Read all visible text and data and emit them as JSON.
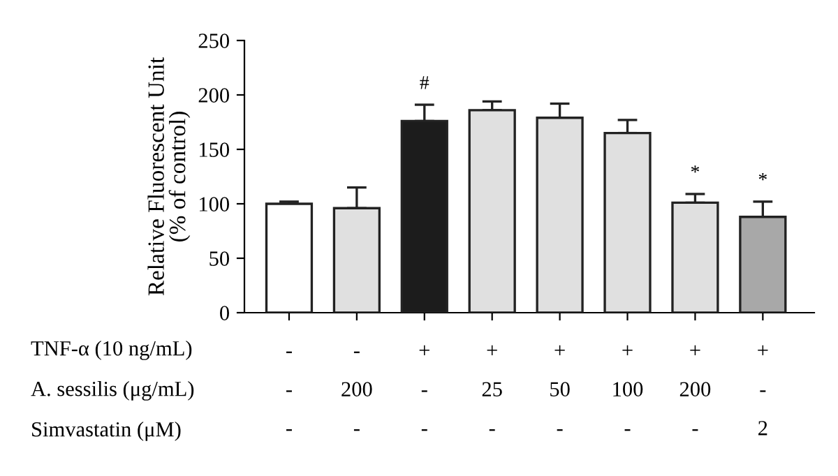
{
  "chart_data": {
    "type": "bar",
    "ylabel": "Relative Fluorescent Unit\n(% of control)",
    "categories": [
      "-\n-\n-",
      "-\n200\n-",
      "+\n-\n-",
      "+\n25\n-",
      "+\n50\n-",
      "+\n100\n-",
      "+\n200\n-",
      "+\n-\n2"
    ],
    "values": [
      100,
      96,
      176,
      186,
      179,
      165,
      101,
      88
    ],
    "errors": [
      [
        100,
        102
      ],
      [
        96,
        115
      ],
      [
        176,
        191
      ],
      [
        186,
        194
      ],
      [
        179,
        192
      ],
      [
        165,
        177
      ],
      [
        101,
        109
      ],
      [
        88,
        102
      ]
    ],
    "colors": [
      "#ffffff",
      "#e0e0e0",
      "#1c1c1c",
      "#e0e0e0",
      "#e0e0e0",
      "#e0e0e0",
      "#e0e0e0",
      "#a8a8a8"
    ],
    "ylim": [
      0,
      250
    ],
    "yticks": [
      0,
      50,
      100,
      150,
      200,
      250
    ],
    "grid": false,
    "legend": false,
    "annotations": [
      "TNF-α (10 ng/mL)",
      "A. sessilis (μg/mL)",
      "Simvastatin (μM)",
      {
        "text": "#",
        "x": "+\n-\n-",
        "y": 191
      },
      {
        "text": "*",
        "x": "+\n200\n-",
        "y": 109
      },
      {
        "text": "*",
        "x": "+\n-\n2",
        "y": 102
      }
    ]
  }
}
